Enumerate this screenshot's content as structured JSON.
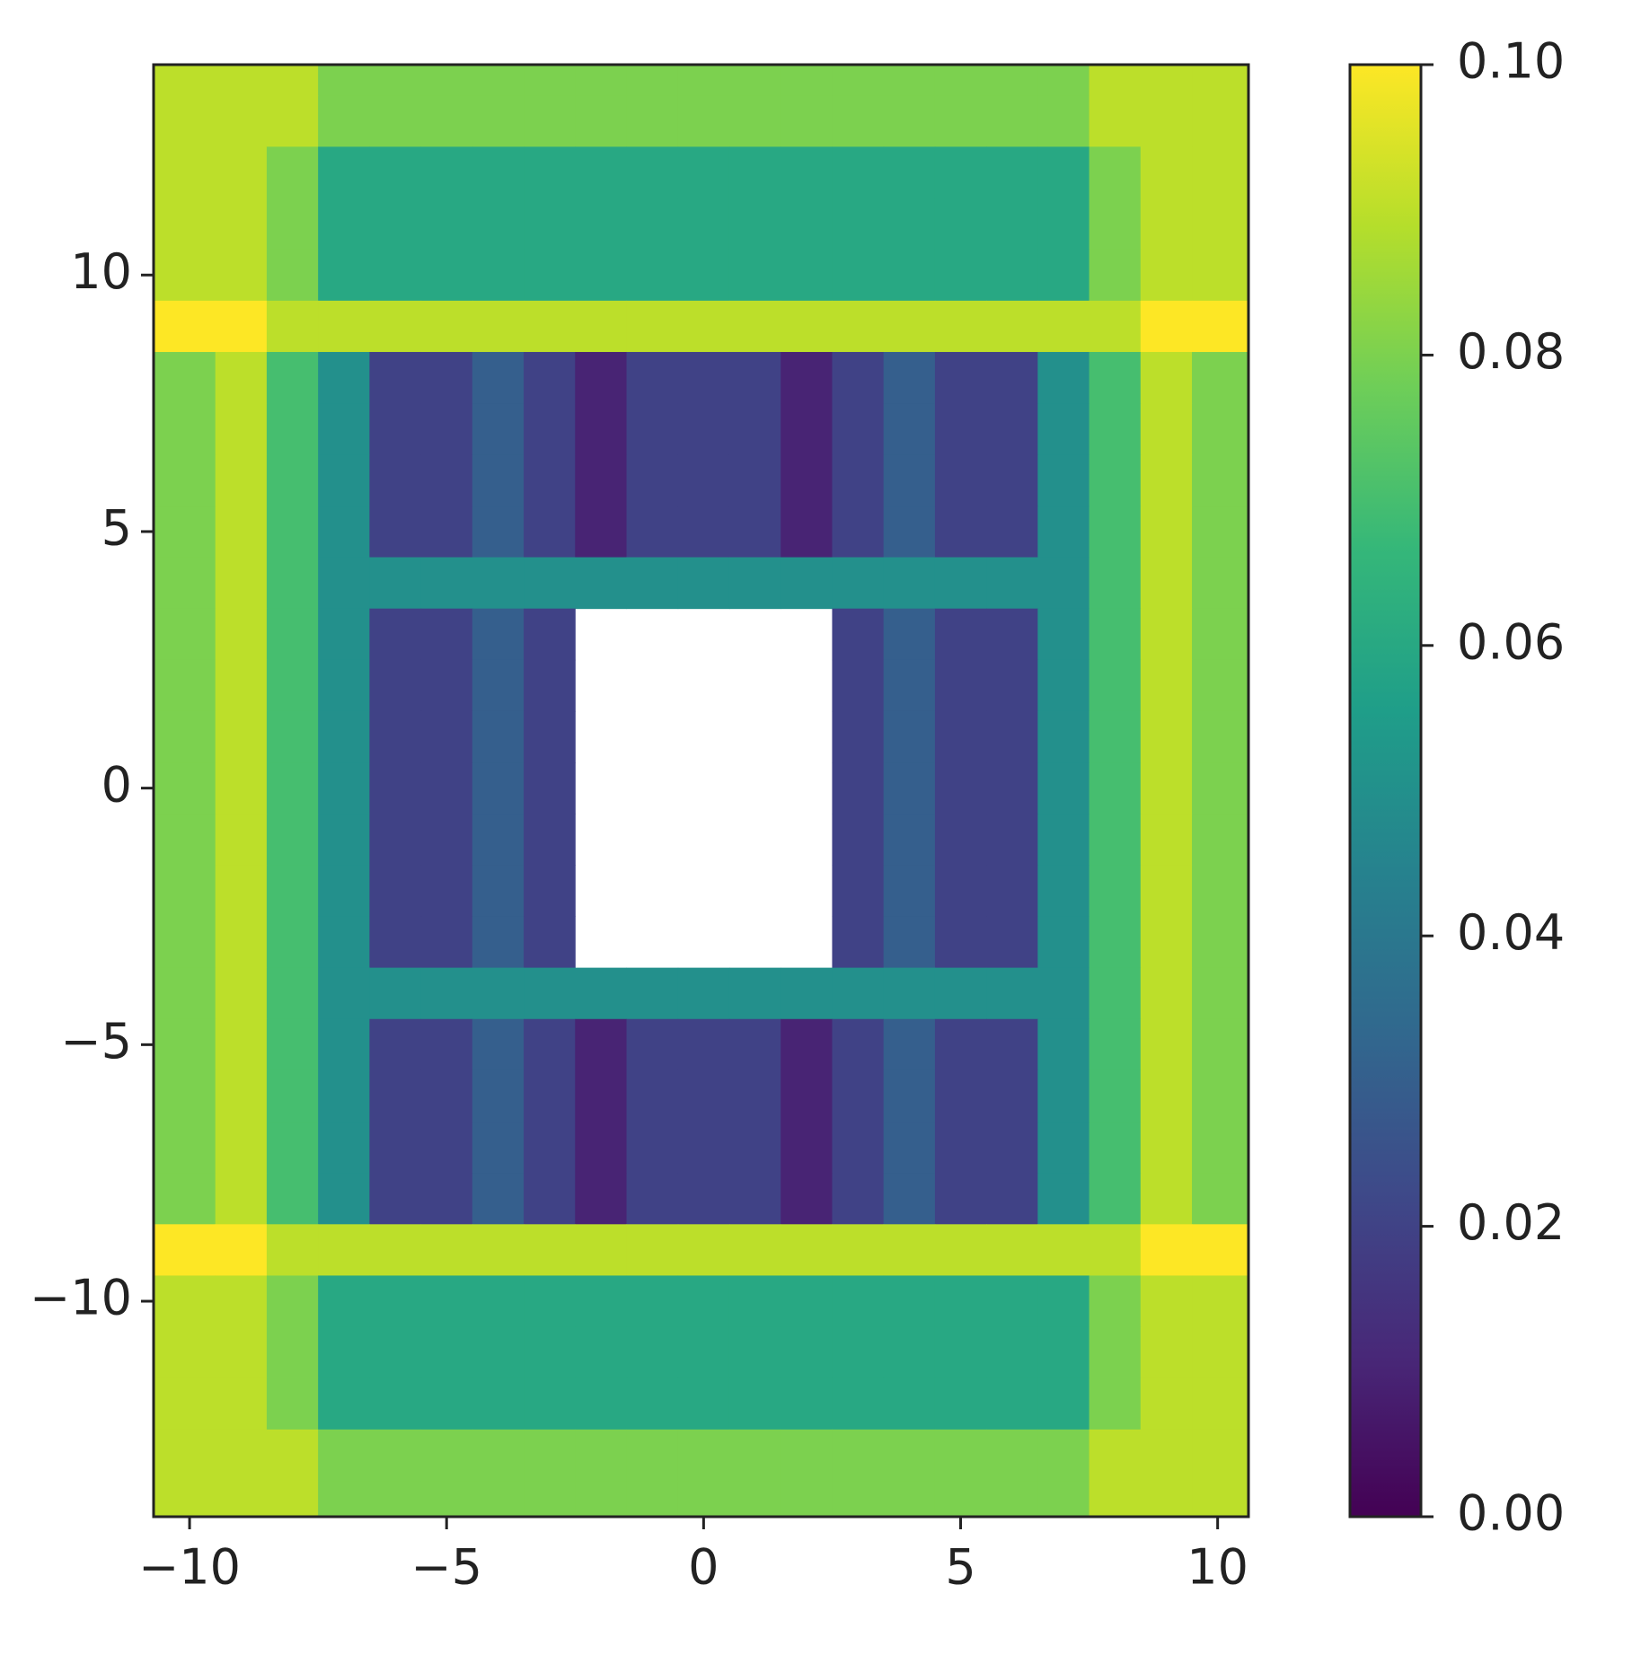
{
  "chart_data": {
    "type": "heatmap",
    "x": [
      -10,
      -9,
      -8,
      -7,
      -6,
      -5,
      -4,
      -3,
      -2,
      -1,
      0,
      1,
      2,
      3,
      4,
      5,
      6,
      7,
      8,
      9,
      10
    ],
    "y": [
      14,
      13,
      12,
      11,
      10,
      9,
      8,
      7,
      6,
      5,
      4,
      3,
      2,
      1,
      0,
      -1,
      -2,
      -3,
      -4,
      -5,
      -6,
      -7,
      -8,
      -9,
      -10,
      -11,
      -12,
      -13,
      -14
    ],
    "z": [
      [
        0.09,
        0.09,
        0.09,
        0.08,
        0.08,
        0.08,
        0.08,
        0.08,
        0.08,
        0.08,
        0.08,
        0.08,
        0.08,
        0.08,
        0.08,
        0.08,
        0.08,
        0.08,
        0.09,
        0.09,
        0.09
      ],
      [
        0.09,
        0.09,
        0.09,
        0.08,
        0.08,
        0.08,
        0.08,
        0.08,
        0.08,
        0.08,
        0.08,
        0.08,
        0.08,
        0.08,
        0.08,
        0.08,
        0.08,
        0.08,
        0.09,
        0.09,
        0.09
      ],
      [
        0.09,
        0.09,
        0.08,
        0.06,
        0.06,
        0.06,
        0.06,
        0.06,
        0.06,
        0.06,
        0.06,
        0.06,
        0.06,
        0.06,
        0.06,
        0.06,
        0.06,
        0.06,
        0.08,
        0.09,
        0.09
      ],
      [
        0.09,
        0.09,
        0.08,
        0.06,
        0.06,
        0.06,
        0.06,
        0.06,
        0.06,
        0.06,
        0.06,
        0.06,
        0.06,
        0.06,
        0.06,
        0.06,
        0.06,
        0.06,
        0.08,
        0.09,
        0.09
      ],
      [
        0.09,
        0.09,
        0.08,
        0.06,
        0.06,
        0.06,
        0.06,
        0.06,
        0.06,
        0.06,
        0.06,
        0.06,
        0.06,
        0.06,
        0.06,
        0.06,
        0.06,
        0.06,
        0.08,
        0.09,
        0.09
      ],
      [
        0.1,
        0.1,
        0.09,
        0.09,
        0.09,
        0.09,
        0.09,
        0.09,
        0.09,
        0.09,
        0.09,
        0.09,
        0.09,
        0.09,
        0.09,
        0.09,
        0.09,
        0.09,
        0.09,
        0.1,
        0.1
      ],
      [
        0.08,
        0.09,
        0.07,
        0.05,
        0.02,
        0.02,
        0.03,
        0.02,
        0.01,
        0.02,
        0.02,
        0.02,
        0.01,
        0.02,
        0.03,
        0.02,
        0.02,
        0.05,
        0.07,
        0.09,
        0.08
      ],
      [
        0.08,
        0.09,
        0.07,
        0.05,
        0.02,
        0.02,
        0.03,
        0.02,
        0.01,
        0.02,
        0.02,
        0.02,
        0.01,
        0.02,
        0.03,
        0.02,
        0.02,
        0.05,
        0.07,
        0.09,
        0.08
      ],
      [
        0.08,
        0.09,
        0.07,
        0.05,
        0.02,
        0.02,
        0.03,
        0.02,
        0.01,
        0.02,
        0.02,
        0.02,
        0.01,
        0.02,
        0.03,
        0.02,
        0.02,
        0.05,
        0.07,
        0.09,
        0.08
      ],
      [
        0.08,
        0.09,
        0.07,
        0.05,
        0.02,
        0.02,
        0.03,
        0.02,
        0.01,
        0.02,
        0.02,
        0.02,
        0.01,
        0.02,
        0.03,
        0.02,
        0.02,
        0.05,
        0.07,
        0.09,
        0.08
      ],
      [
        0.08,
        0.09,
        0.07,
        0.05,
        0.05,
        0.05,
        0.05,
        0.05,
        0.05,
        0.05,
        0.05,
        0.05,
        0.05,
        0.05,
        0.05,
        0.05,
        0.05,
        0.05,
        0.07,
        0.09,
        0.08
      ],
      [
        0.08,
        0.09,
        0.07,
        0.05,
        0.02,
        0.02,
        0.03,
        0.02,
        null,
        null,
        null,
        null,
        null,
        0.02,
        0.03,
        0.02,
        0.02,
        0.05,
        0.07,
        0.09,
        0.08
      ],
      [
        0.08,
        0.09,
        0.07,
        0.05,
        0.02,
        0.02,
        0.03,
        0.02,
        null,
        null,
        null,
        null,
        null,
        0.02,
        0.03,
        0.02,
        0.02,
        0.05,
        0.07,
        0.09,
        0.08
      ],
      [
        0.08,
        0.09,
        0.07,
        0.05,
        0.02,
        0.02,
        0.03,
        0.02,
        null,
        null,
        null,
        null,
        null,
        0.02,
        0.03,
        0.02,
        0.02,
        0.05,
        0.07,
        0.09,
        0.08
      ],
      [
        0.08,
        0.09,
        0.07,
        0.05,
        0.02,
        0.02,
        0.03,
        0.02,
        null,
        null,
        null,
        null,
        null,
        0.02,
        0.03,
        0.02,
        0.02,
        0.05,
        0.07,
        0.09,
        0.08
      ],
      [
        0.08,
        0.09,
        0.07,
        0.05,
        0.02,
        0.02,
        0.03,
        0.02,
        null,
        null,
        null,
        null,
        null,
        0.02,
        0.03,
        0.02,
        0.02,
        0.05,
        0.07,
        0.09,
        0.08
      ],
      [
        0.08,
        0.09,
        0.07,
        0.05,
        0.02,
        0.02,
        0.03,
        0.02,
        null,
        null,
        null,
        null,
        null,
        0.02,
        0.03,
        0.02,
        0.02,
        0.05,
        0.07,
        0.09,
        0.08
      ],
      [
        0.08,
        0.09,
        0.07,
        0.05,
        0.02,
        0.02,
        0.03,
        0.02,
        null,
        null,
        null,
        null,
        null,
        0.02,
        0.03,
        0.02,
        0.02,
        0.05,
        0.07,
        0.09,
        0.08
      ],
      [
        0.08,
        0.09,
        0.07,
        0.05,
        0.05,
        0.05,
        0.05,
        0.05,
        0.05,
        0.05,
        0.05,
        0.05,
        0.05,
        0.05,
        0.05,
        0.05,
        0.05,
        0.05,
        0.07,
        0.09,
        0.08
      ],
      [
        0.08,
        0.09,
        0.07,
        0.05,
        0.02,
        0.02,
        0.03,
        0.02,
        0.01,
        0.02,
        0.02,
        0.02,
        0.01,
        0.02,
        0.03,
        0.02,
        0.02,
        0.05,
        0.07,
        0.09,
        0.08
      ],
      [
        0.08,
        0.09,
        0.07,
        0.05,
        0.02,
        0.02,
        0.03,
        0.02,
        0.01,
        0.02,
        0.02,
        0.02,
        0.01,
        0.02,
        0.03,
        0.02,
        0.02,
        0.05,
        0.07,
        0.09,
        0.08
      ],
      [
        0.08,
        0.09,
        0.07,
        0.05,
        0.02,
        0.02,
        0.03,
        0.02,
        0.01,
        0.02,
        0.02,
        0.02,
        0.01,
        0.02,
        0.03,
        0.02,
        0.02,
        0.05,
        0.07,
        0.09,
        0.08
      ],
      [
        0.08,
        0.09,
        0.07,
        0.05,
        0.02,
        0.02,
        0.03,
        0.02,
        0.01,
        0.02,
        0.02,
        0.02,
        0.01,
        0.02,
        0.03,
        0.02,
        0.02,
        0.05,
        0.07,
        0.09,
        0.08
      ],
      [
        0.1,
        0.1,
        0.09,
        0.09,
        0.09,
        0.09,
        0.09,
        0.09,
        0.09,
        0.09,
        0.09,
        0.09,
        0.09,
        0.09,
        0.09,
        0.09,
        0.09,
        0.09,
        0.09,
        0.1,
        0.1
      ],
      [
        0.09,
        0.09,
        0.08,
        0.06,
        0.06,
        0.06,
        0.06,
        0.06,
        0.06,
        0.06,
        0.06,
        0.06,
        0.06,
        0.06,
        0.06,
        0.06,
        0.06,
        0.06,
        0.08,
        0.09,
        0.09
      ],
      [
        0.09,
        0.09,
        0.08,
        0.06,
        0.06,
        0.06,
        0.06,
        0.06,
        0.06,
        0.06,
        0.06,
        0.06,
        0.06,
        0.06,
        0.06,
        0.06,
        0.06,
        0.06,
        0.08,
        0.09,
        0.09
      ],
      [
        0.09,
        0.09,
        0.08,
        0.06,
        0.06,
        0.06,
        0.06,
        0.06,
        0.06,
        0.06,
        0.06,
        0.06,
        0.06,
        0.06,
        0.06,
        0.06,
        0.06,
        0.06,
        0.08,
        0.09,
        0.09
      ],
      [
        0.09,
        0.09,
        0.09,
        0.08,
        0.08,
        0.08,
        0.08,
        0.08,
        0.08,
        0.08,
        0.08,
        0.08,
        0.08,
        0.08,
        0.08,
        0.08,
        0.08,
        0.08,
        0.09,
        0.09,
        0.09
      ],
      [
        0.09,
        0.09,
        0.09,
        0.08,
        0.08,
        0.08,
        0.08,
        0.08,
        0.08,
        0.08,
        0.08,
        0.08,
        0.08,
        0.08,
        0.08,
        0.08,
        0.08,
        0.08,
        0.09,
        0.09,
        0.09
      ]
    ],
    "xlim": [
      -10.7,
      10.6
    ],
    "ylim": [
      -14.2,
      14.1
    ],
    "xticks": [
      {
        "value": -10,
        "label": "−10"
      },
      {
        "value": -5,
        "label": "−5"
      },
      {
        "value": 0,
        "label": "0"
      },
      {
        "value": 5,
        "label": "5"
      },
      {
        "value": 10,
        "label": "10"
      }
    ],
    "yticks": [
      {
        "value": -10,
        "label": "−10"
      },
      {
        "value": -5,
        "label": "−5"
      },
      {
        "value": 0,
        "label": "0"
      },
      {
        "value": 5,
        "label": "5"
      },
      {
        "value": 10,
        "label": "10"
      }
    ],
    "colormap": "viridis",
    "clim": [
      0,
      0.1
    ],
    "cticks": [
      {
        "value": 0,
        "label": "0.00"
      },
      {
        "value": 0.02,
        "label": "0.02"
      },
      {
        "value": 0.04,
        "label": "0.04"
      },
      {
        "value": 0.06,
        "label": "0.06"
      },
      {
        "value": 0.08,
        "label": "0.08"
      },
      {
        "value": 0.1,
        "label": "0.10"
      }
    ]
  }
}
